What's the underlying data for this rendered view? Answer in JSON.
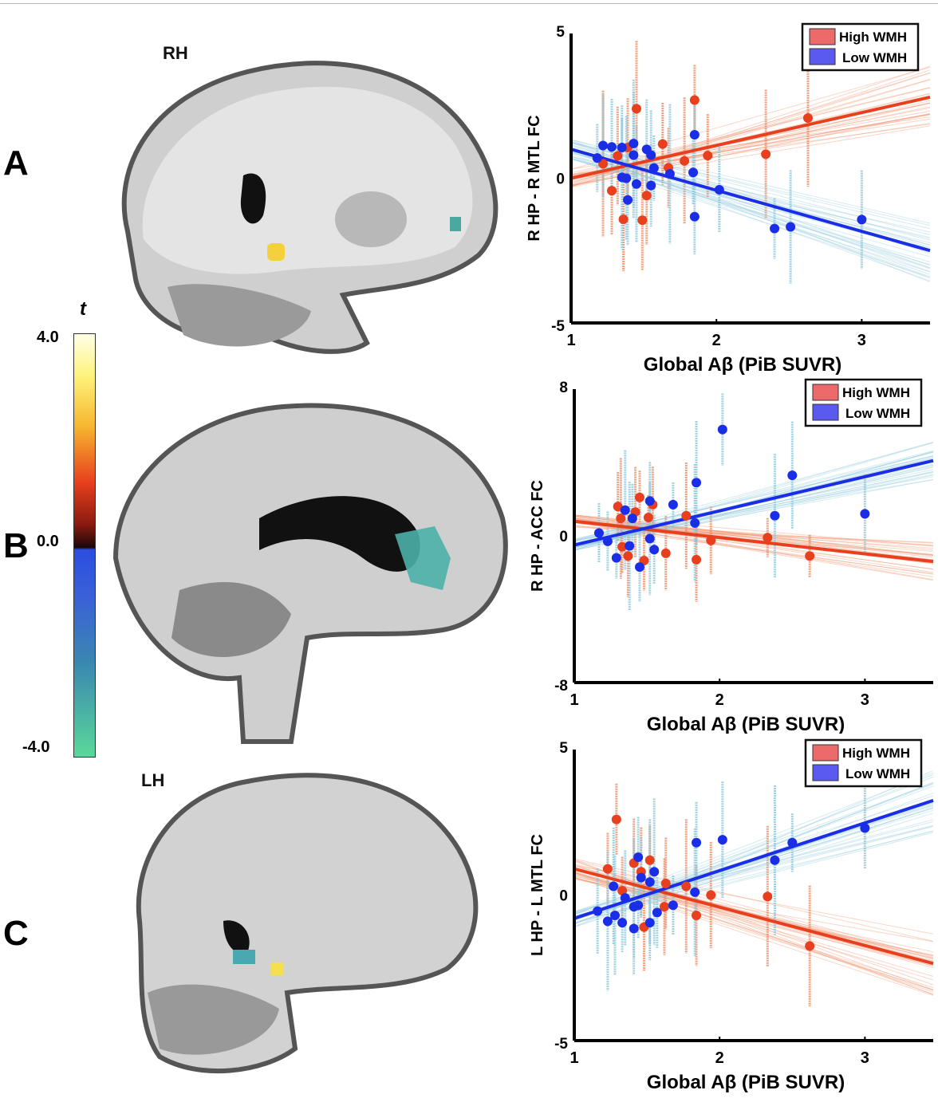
{
  "panel_labels": [
    "A",
    "B",
    "C"
  ],
  "hemisphere_labels": {
    "top": "RH",
    "bottom": "LH"
  },
  "colorbar": {
    "title": "t",
    "max_label": "4.0",
    "mid_label": "0.0",
    "min_label": "-4.0",
    "colors": [
      "#ffffe8",
      "#fff27a",
      "#e8401e",
      "#1a0806",
      "#2a4ee0",
      "#3a88b0",
      "#5ad89a"
    ]
  },
  "colors": {
    "high": "#e8401e",
    "high_light": "#f08a60",
    "low": "#1a2ee8",
    "low_light": "#8cc8dc",
    "legend_high": "#ec6a6a",
    "legend_low": "#5a5af0"
  },
  "chart_data": [
    {
      "type": "scatter",
      "xlabel": "Global Aβ (PiB SUVR)",
      "ylabel": "R HP - R MTL FC",
      "xlim": [
        1,
        3.47
      ],
      "ylim": [
        -5,
        5
      ],
      "xticks": [
        "1",
        "2",
        "3"
      ],
      "yticks": [
        "5",
        "0",
        "-5"
      ],
      "legend": "top-right",
      "series": [
        {
          "name": "High WMH",
          "color": "#e8401e",
          "points": [
            [
              1.22,
              0.5
            ],
            [
              1.28,
              -0.43
            ],
            [
              1.32,
              0.77
            ],
            [
              1.36,
              -1.42
            ],
            [
              1.39,
              1.06
            ],
            [
              1.45,
              2.4
            ],
            [
              1.49,
              -1.45
            ],
            [
              1.52,
              -0.6
            ],
            [
              1.63,
              1.18
            ],
            [
              1.67,
              0.36
            ],
            [
              1.78,
              0.6
            ],
            [
              1.85,
              2.7
            ],
            [
              1.94,
              0.78
            ],
            [
              2.34,
              0.83
            ],
            [
              2.63,
              2.08
            ]
          ],
          "fit": [
            [
              1,
              0
            ],
            [
              3.47,
              2.8
            ]
          ]
        },
        {
          "name": "Low WMH",
          "color": "#1a2ee8",
          "points": [
            [
              1.18,
              0.7
            ],
            [
              1.22,
              1.13
            ],
            [
              1.28,
              1.08
            ],
            [
              1.35,
              1.06
            ],
            [
              1.43,
              1.2
            ],
            [
              1.52,
              1.0
            ],
            [
              1.43,
              0.8
            ],
            [
              1.55,
              0.8
            ],
            [
              1.35,
              0.03
            ],
            [
              1.38,
              0
            ],
            [
              1.45,
              -0.2
            ],
            [
              1.55,
              -0.25
            ],
            [
              1.39,
              -0.75
            ],
            [
              1.57,
              0.35
            ],
            [
              1.68,
              0.15
            ],
            [
              1.85,
              1.5
            ],
            [
              1.84,
              0.2
            ],
            [
              1.85,
              -1.33
            ],
            [
              2.02,
              -0.4
            ],
            [
              2.4,
              -1.74
            ],
            [
              2.51,
              -1.68
            ],
            [
              3.0,
              -1.43
            ]
          ],
          "fit": [
            [
              1,
              1.0
            ],
            [
              3.47,
              -2.5
            ]
          ]
        }
      ]
    },
    {
      "type": "scatter",
      "xlabel": "Global Aβ (PiB SUVR)",
      "ylabel": "R HP - ACC FC",
      "xlim": [
        1,
        3.47
      ],
      "ylim": [
        -8,
        8
      ],
      "xticks": [
        "1",
        "2",
        "3"
      ],
      "yticks": [
        "8",
        "0",
        "-8"
      ],
      "legend": "top-right",
      "series": [
        {
          "name": "High WMH",
          "color": "#e8401e",
          "points": [
            [
              1.45,
              2.1
            ],
            [
              1.3,
              1.6
            ],
            [
              1.54,
              1.7
            ],
            [
              1.32,
              0.95
            ],
            [
              1.42,
              1.3
            ],
            [
              1.51,
              1.0
            ],
            [
              1.33,
              -0.6
            ],
            [
              1.37,
              -1.1
            ],
            [
              1.48,
              -1.35
            ],
            [
              1.63,
              -0.95
            ],
            [
              1.84,
              -1.3
            ],
            [
              1.94,
              -0.25
            ],
            [
              2.33,
              -0.1
            ],
            [
              2.62,
              -1.1
            ],
            [
              1.77,
              1.1
            ]
          ],
          "fit": [
            [
              1,
              0.8
            ],
            [
              3.47,
              -1.4
            ]
          ]
        },
        {
          "name": "Low WMH",
          "color": "#1a2ee8",
          "points": [
            [
              2.02,
              5.8
            ],
            [
              1.84,
              2.9
            ],
            [
              2.5,
              3.3
            ],
            [
              2.38,
              1.1
            ],
            [
              3.0,
              1.2
            ],
            [
              1.83,
              0.7
            ],
            [
              1.52,
              1.9
            ],
            [
              1.68,
              1.7
            ],
            [
              1.35,
              1.4
            ],
            [
              1.4,
              0.95
            ],
            [
              1.17,
              0.15
            ],
            [
              1.23,
              -0.3
            ],
            [
              1.29,
              -1.2
            ],
            [
              1.45,
              -1.7
            ],
            [
              1.55,
              -0.75
            ],
            [
              1.38,
              -0.55
            ],
            [
              1.52,
              -0.15
            ]
          ],
          "fit": [
            [
              1,
              -0.5
            ],
            [
              3.47,
              4.1
            ]
          ]
        }
      ]
    },
    {
      "type": "scatter",
      "xlabel": "Global Aβ (PiB SUVR)",
      "ylabel": "L HP - L MTL FC",
      "xlim": [
        1,
        3.47
      ],
      "ylim": [
        -5,
        5
      ],
      "xticks": [
        "1",
        "2",
        "3"
      ],
      "yticks": [
        "5",
        "0",
        "-5"
      ],
      "legend": "top-right",
      "series": [
        {
          "name": "High WMH",
          "color": "#e8401e",
          "points": [
            [
              1.29,
              2.6
            ],
            [
              1.23,
              0.9
            ],
            [
              1.41,
              1.1
            ],
            [
              1.52,
              1.2
            ],
            [
              1.46,
              0.8
            ],
            [
              1.33,
              0.15
            ],
            [
              1.62,
              -0.4
            ],
            [
              1.48,
              -1.1
            ],
            [
              1.77,
              0.3
            ],
            [
              1.84,
              -0.7
            ],
            [
              1.94,
              0
            ],
            [
              2.33,
              -0.05
            ],
            [
              2.62,
              -1.75
            ],
            [
              1.63,
              0.4
            ]
          ],
          "fit": [
            [
              1,
              0.9
            ],
            [
              3.47,
              -2.35
            ]
          ]
        },
        {
          "name": "Low WMH",
          "color": "#1a2ee8",
          "points": [
            [
              3.0,
              2.3
            ],
            [
              2.5,
              1.8
            ],
            [
              2.38,
              1.2
            ],
            [
              2.02,
              1.9
            ],
            [
              1.84,
              1.8
            ],
            [
              1.44,
              1.3
            ],
            [
              1.55,
              0.8
            ],
            [
              1.46,
              0.6
            ],
            [
              1.52,
              0.45
            ],
            [
              1.27,
              0.3
            ],
            [
              1.35,
              -0.1
            ],
            [
              1.41,
              -0.4
            ],
            [
              1.44,
              -0.35
            ],
            [
              1.57,
              -0.6
            ],
            [
              1.68,
              -0.35
            ],
            [
              1.83,
              0.1
            ],
            [
              1.23,
              -0.9
            ],
            [
              1.28,
              -0.7
            ],
            [
              1.33,
              -0.95
            ],
            [
              1.41,
              -1.15
            ],
            [
              1.52,
              -0.95
            ],
            [
              1.16,
              -0.55
            ]
          ],
          "fit": [
            [
              1,
              -0.8
            ],
            [
              3.47,
              3.25
            ]
          ]
        }
      ]
    }
  ]
}
